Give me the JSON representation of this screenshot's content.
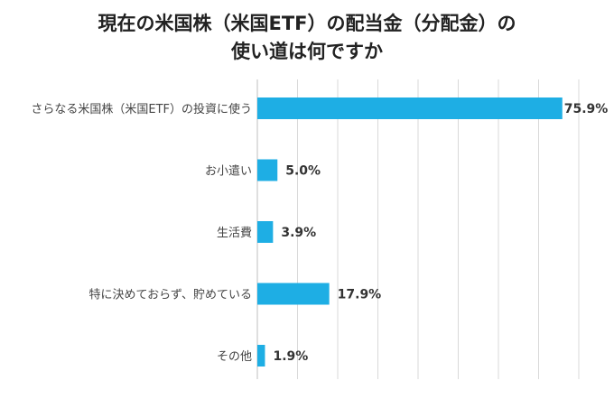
{
  "chart_data": {
    "type": "bar",
    "orientation": "horizontal",
    "title_lines": [
      "現在の米国株（米国ETF）の配当金（分配金）の",
      "使い道は何ですか"
    ],
    "categories": [
      "さらなる米国株（米国ETF）の投資に使う",
      "お小遣い",
      "生活費",
      "特に決めておらず、貯めている",
      "その他"
    ],
    "values": [
      75.9,
      5.0,
      3.9,
      17.9,
      1.9
    ],
    "value_labels": [
      "75.9%",
      "5.0%",
      "3.9%",
      "17.9%",
      "1.9%"
    ],
    "xlim": [
      0,
      80
    ],
    "grid_step": 10,
    "grid": true,
    "bar_color": "#1eaee4",
    "grid_color": "#d9d9d9"
  }
}
